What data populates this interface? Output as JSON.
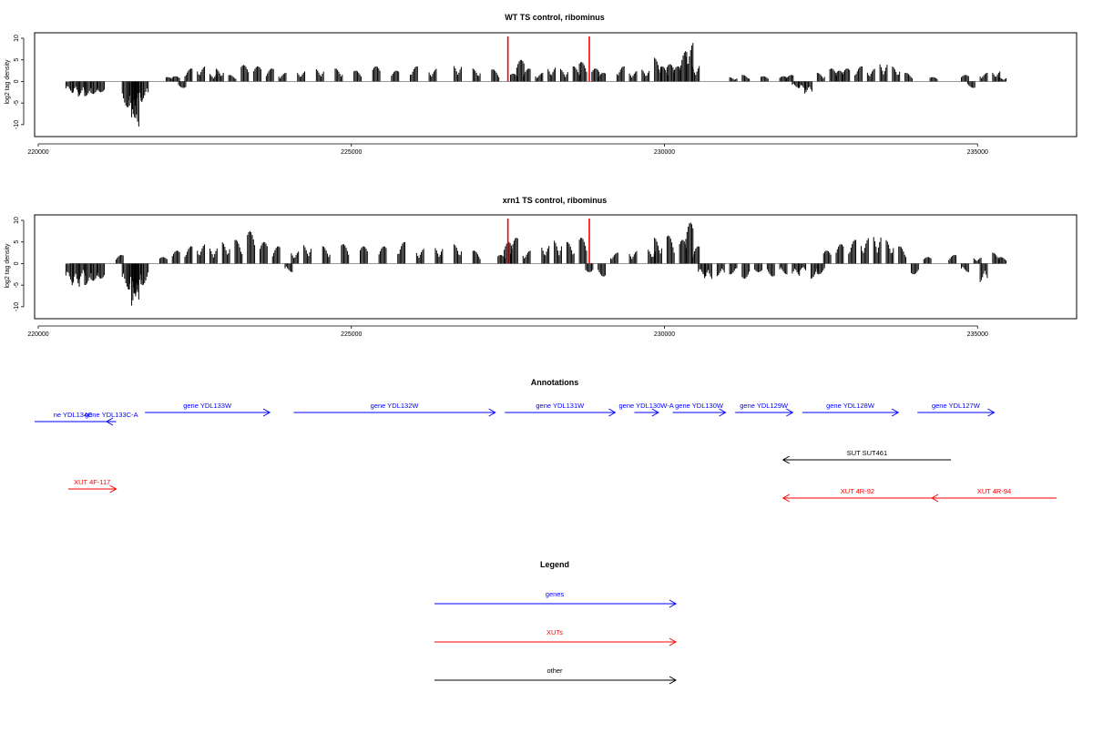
{
  "chart_data": [
    {
      "type": "bar",
      "title": "WT TS control, ribominus",
      "ylabel": "log2 tag density",
      "xlim": [
        220000,
        236000
      ],
      "ylim": [
        -11.5,
        10
      ],
      "x_ticks": [
        220000,
        225000,
        230000,
        235000
      ],
      "y_ticks": [
        -10,
        -5,
        0,
        5,
        10
      ],
      "series": [
        {
          "values": [
            [
              220500,
              -2.6
            ],
            [
              220600,
              -3.2
            ],
            [
              220700,
              -3.6
            ],
            [
              220800,
              -3.4
            ],
            [
              220900,
              -2.9
            ],
            [
              221000,
              -2.5
            ],
            [
              221400,
              -6
            ],
            [
              221500,
              -8.5
            ],
            [
              221550,
              -11
            ],
            [
              221600,
              -6
            ],
            [
              221700,
              -4.5
            ],
            [
              222100,
              1
            ],
            [
              222200,
              1.2
            ],
            [
              222300,
              -1.5
            ],
            [
              222400,
              3
            ],
            [
              222600,
              3.5
            ],
            [
              222800,
              2
            ],
            [
              222900,
              3
            ],
            [
              223100,
              1.5
            ],
            [
              223300,
              3.8
            ],
            [
              223500,
              3.5
            ],
            [
              223700,
              3
            ],
            [
              223900,
              2
            ],
            [
              224200,
              2.5
            ],
            [
              224500,
              3
            ],
            [
              224800,
              3
            ],
            [
              225100,
              2.5
            ],
            [
              225400,
              3.5
            ],
            [
              225700,
              2.5
            ],
            [
              226000,
              3.5
            ],
            [
              226300,
              3
            ],
            [
              226700,
              4
            ],
            [
              227000,
              3
            ],
            [
              227300,
              2.8
            ],
            [
              227600,
              1.8
            ],
            [
              227700,
              5
            ],
            [
              227800,
              3
            ],
            [
              228000,
              2
            ],
            [
              228200,
              3.5
            ],
            [
              228400,
              3
            ],
            [
              228600,
              3.5
            ],
            [
              228700,
              4.5
            ],
            [
              228900,
              3
            ],
            [
              229000,
              2
            ],
            [
              229300,
              3.5
            ],
            [
              229500,
              2.5
            ],
            [
              229700,
              3
            ],
            [
              229900,
              5.5
            ],
            [
              230000,
              3.5
            ],
            [
              230100,
              4
            ],
            [
              230200,
              3.5
            ],
            [
              230300,
              7
            ],
            [
              230400,
              9
            ],
            [
              230500,
              4
            ],
            [
              231100,
              1
            ],
            [
              231300,
              1.5
            ],
            [
              231600,
              1.2
            ],
            [
              231900,
              1.2
            ],
            [
              232000,
              1.5
            ],
            [
              232100,
              -1.5
            ],
            [
              232200,
              -2
            ],
            [
              232300,
              -3
            ],
            [
              232500,
              2
            ],
            [
              232700,
              3
            ],
            [
              232800,
              2.5
            ],
            [
              232900,
              3
            ],
            [
              233100,
              3.5
            ],
            [
              233300,
              3
            ],
            [
              233500,
              4.5
            ],
            [
              233700,
              3.5
            ],
            [
              233900,
              2
            ],
            [
              234300,
              1
            ],
            [
              234800,
              1.5
            ],
            [
              234900,
              -1.5
            ],
            [
              235100,
              2
            ],
            [
              235300,
              2.5
            ],
            [
              235400,
              1
            ]
          ]
        }
      ],
      "markers": [
        227500,
        228800
      ]
    },
    {
      "type": "bar",
      "title": "xrn1 TS control, ribominus",
      "ylabel": "log2 tag density",
      "xlim": [
        220000,
        236000
      ],
      "ylim": [
        -11.5,
        10
      ],
      "x_ticks": [
        220000,
        225000,
        230000,
        235000
      ],
      "y_ticks": [
        -10,
        -5,
        0,
        5,
        10
      ],
      "series": [
        {
          "values": [
            [
              220500,
              -4.5
            ],
            [
              220600,
              -6
            ],
            [
              220700,
              -4
            ],
            [
              220800,
              -5
            ],
            [
              220900,
              -4
            ],
            [
              221000,
              -3.5
            ],
            [
              221300,
              2
            ],
            [
              221400,
              -6
            ],
            [
              221500,
              -8
            ],
            [
              221550,
              -10.5
            ],
            [
              221600,
              -7
            ],
            [
              221700,
              -5
            ],
            [
              222000,
              1.5
            ],
            [
              222200,
              3
            ],
            [
              222400,
              4
            ],
            [
              222600,
              4.5
            ],
            [
              222800,
              4
            ],
            [
              223000,
              5
            ],
            [
              223200,
              5.5
            ],
            [
              223400,
              7.5
            ],
            [
              223600,
              5
            ],
            [
              223800,
              4
            ],
            [
              224000,
              -2
            ],
            [
              224100,
              3
            ],
            [
              224300,
              4.5
            ],
            [
              224600,
              4
            ],
            [
              224900,
              4.5
            ],
            [
              225200,
              4
            ],
            [
              225500,
              4
            ],
            [
              225800,
              5
            ],
            [
              226100,
              3.5
            ],
            [
              226400,
              4
            ],
            [
              226700,
              4.5
            ],
            [
              227000,
              3
            ],
            [
              227400,
              2
            ],
            [
              227500,
              5
            ],
            [
              227600,
              6
            ],
            [
              227800,
              3
            ],
            [
              228100,
              4.5
            ],
            [
              228300,
              5.5
            ],
            [
              228500,
              5
            ],
            [
              228700,
              6
            ],
            [
              228800,
              -2
            ],
            [
              229000,
              -3
            ],
            [
              229200,
              2.5
            ],
            [
              229500,
              3
            ],
            [
              229800,
              3.5
            ],
            [
              229900,
              6
            ],
            [
              230100,
              6.5
            ],
            [
              230300,
              5.5
            ],
            [
              230400,
              9.5
            ],
            [
              230500,
              4
            ],
            [
              230600,
              -3
            ],
            [
              230700,
              -4
            ],
            [
              230900,
              -3
            ],
            [
              231100,
              -2.5
            ],
            [
              231300,
              -3.5
            ],
            [
              231500,
              -2
            ],
            [
              231700,
              -3
            ],
            [
              231900,
              -2.5
            ],
            [
              232100,
              -3
            ],
            [
              232200,
              -2
            ],
            [
              232400,
              -3.5
            ],
            [
              232500,
              -2.5
            ],
            [
              232600,
              3
            ],
            [
              232800,
              4.5
            ],
            [
              233000,
              5.5
            ],
            [
              233200,
              6
            ],
            [
              233400,
              7
            ],
            [
              233600,
              5.5
            ],
            [
              233800,
              4
            ],
            [
              234000,
              -2.5
            ],
            [
              234200,
              1.5
            ],
            [
              234600,
              2
            ],
            [
              234800,
              -2
            ],
            [
              235000,
              1.5
            ],
            [
              235100,
              -4.5
            ],
            [
              235300,
              2.5
            ],
            [
              235400,
              1.5
            ]
          ]
        }
      ],
      "markers": [
        227500,
        228800
      ]
    }
  ],
  "annotations": {
    "title": "Annotations",
    "genes": [
      {
        "label": "ne YDL134C",
        "x1": 220000,
        "x2": 221600,
        "dir": "none"
      },
      {
        "label": "gene YDL133C-A",
        "x1": 221500,
        "x2": 221700,
        "dir": "left"
      },
      {
        "label": "gene YDL133W",
        "x1": 222300,
        "x2": 224900,
        "dir": "right"
      },
      {
        "label": "gene YDL132W",
        "x1": 225400,
        "x2": 229600,
        "dir": "right"
      },
      {
        "label": "gene YDL131W",
        "x1": 229800,
        "x2": 232100,
        "dir": "right"
      },
      {
        "label": "gene YDL130W-A",
        "x1": 232500,
        "x2": 233000,
        "dir": "right"
      },
      {
        "label": "gene YDL130W",
        "x1": 233300,
        "x2": 234400,
        "dir": "right"
      },
      {
        "label": "gene YDL129W",
        "x1": 234600,
        "x2": 235800,
        "dir": "right"
      },
      {
        "label": "gene YDL128W",
        "x1": 236000,
        "x2": 238000,
        "dir": "right"
      },
      {
        "label": "gene YDL127W",
        "x1": 238400,
        "x2": 240000,
        "dir": "right"
      }
    ],
    "other": [
      {
        "label": "SUT SUT461",
        "x1": 235600,
        "x2": 239100,
        "dir": "left"
      }
    ],
    "xuts": [
      {
        "label": "XUT 4F-117",
        "x1": 220700,
        "x2": 221700,
        "dir": "right"
      },
      {
        "label": "XUT 4R-92",
        "x1": 235600,
        "x2": 238700,
        "dir": "left"
      },
      {
        "label": "XUT 4R-94",
        "x1": 238700,
        "x2": 241300,
        "dir": "left"
      }
    ]
  },
  "legend": {
    "title": "Legend",
    "items": [
      {
        "label": "genes",
        "color": "#0000ff"
      },
      {
        "label": "XUTs",
        "color": "#ff0000"
      },
      {
        "label": "other",
        "color": "#000000"
      }
    ]
  },
  "colors": {
    "gene": "#0000ff",
    "xut": "#ff0000",
    "other": "#000000",
    "marker": "#ff0000",
    "bar": "#000000",
    "baseline": "#888888"
  }
}
